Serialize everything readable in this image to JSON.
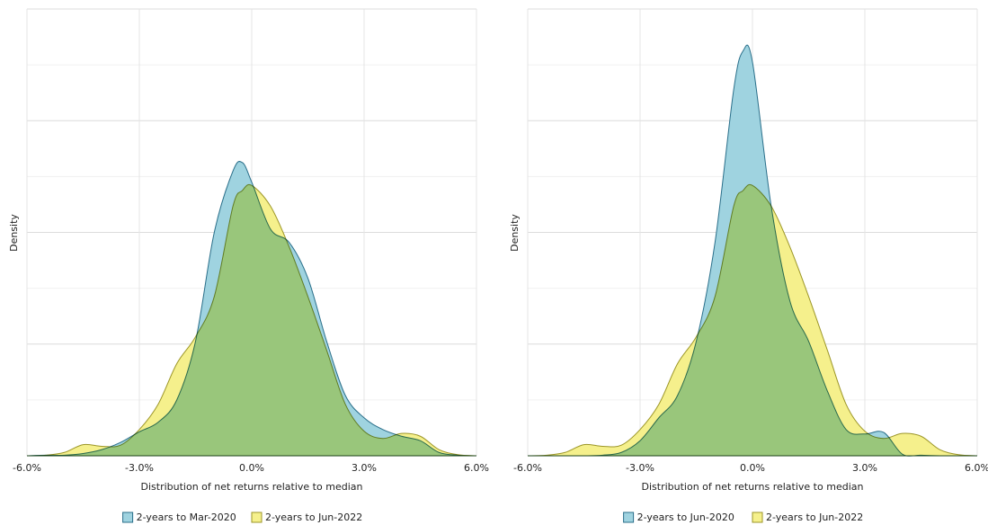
{
  "chart_data": [
    {
      "type": "area",
      "ylabel": "Density",
      "xlabel": "Distribution of net returns relative to median",
      "x": [
        -6,
        -5.5,
        -5,
        -4.5,
        -4,
        -3.5,
        -3,
        -2.5,
        -2,
        -1.5,
        -1,
        -0.5,
        -0.25,
        0,
        0.5,
        1,
        1.5,
        2,
        2.5,
        3,
        3.5,
        4,
        4.5,
        5,
        5.5,
        6
      ],
      "series": [
        {
          "name": "2-years to Mar-2020",
          "color": "#9fd3e0",
          "edge": "#2a6f8a",
          "values": [
            0,
            0.01,
            0.01,
            0.04,
            0.11,
            0.24,
            0.43,
            0.6,
            1.0,
            2.05,
            4.0,
            5.1,
            5.25,
            4.9,
            4.06,
            3.82,
            3.18,
            2.05,
            1.08,
            0.68,
            0.47,
            0.35,
            0.27,
            0.06,
            0.01,
            0
          ]
        },
        {
          "name": "2-years to Jun-2022",
          "color": "#f5f08c",
          "edge": "#9c9628",
          "values": [
            0,
            0.01,
            0.06,
            0.2,
            0.17,
            0.19,
            0.47,
            0.92,
            1.65,
            2.13,
            2.85,
            4.47,
            4.75,
            4.84,
            4.47,
            3.74,
            2.85,
            1.89,
            0.92,
            0.44,
            0.31,
            0.4,
            0.35,
            0.11,
            0.02,
            0
          ]
        }
      ],
      "xlim": [
        -6,
        6
      ],
      "xticks": [
        {
          "value": -6,
          "label": "-6.0%"
        },
        {
          "value": -3,
          "label": "-3.0%"
        },
        {
          "value": 0,
          "label": "0.0%"
        },
        {
          "value": 3,
          "label": "3.0%"
        },
        {
          "value": 6,
          "label": "6.0%"
        }
      ],
      "ylim": [
        0,
        8
      ],
      "yticks": [
        0,
        1,
        2,
        3,
        4,
        5,
        6,
        7,
        8
      ],
      "grid": true,
      "legend": "bottom"
    },
    {
      "type": "area",
      "ylabel": "Density",
      "xlabel": "Distribution of net returns relative to median",
      "x": [
        -6,
        -5.5,
        -5,
        -4.5,
        -4,
        -3.5,
        -3,
        -2.5,
        -2,
        -1.5,
        -1,
        -0.5,
        -0.25,
        0,
        0.5,
        1,
        1.5,
        2,
        2.5,
        3,
        3.5,
        4,
        4.5,
        5,
        5.5,
        6
      ],
      "series": [
        {
          "name": "2-years to Jun-2020",
          "color": "#9fd3e0",
          "edge": "#2a6f8a",
          "values": [
            0,
            0,
            0,
            0,
            0.01,
            0.06,
            0.27,
            0.68,
            1.08,
            2.05,
            3.82,
            6.56,
            7.25,
            7.05,
            4.47,
            2.77,
            2.05,
            1.16,
            0.47,
            0.39,
            0.42,
            0.03,
            0.01,
            0,
            0,
            0
          ]
        },
        {
          "name": "2-years to Jun-2022",
          "color": "#f5f08c",
          "edge": "#9c9628",
          "values": [
            0,
            0.01,
            0.06,
            0.2,
            0.17,
            0.19,
            0.47,
            0.92,
            1.65,
            2.13,
            2.85,
            4.47,
            4.75,
            4.84,
            4.47,
            3.74,
            2.85,
            1.89,
            0.92,
            0.44,
            0.31,
            0.4,
            0.35,
            0.11,
            0.02,
            0
          ]
        }
      ],
      "xlim": [
        -6,
        6
      ],
      "xticks": [
        {
          "value": -6,
          "label": "-6.0%"
        },
        {
          "value": -3,
          "label": "-3.0%"
        },
        {
          "value": 0,
          "label": "0.0%"
        },
        {
          "value": 3,
          "label": "3.0%"
        },
        {
          "value": 6,
          "label": "6.0%"
        }
      ],
      "ylim": [
        0,
        8
      ],
      "yticks": [
        0,
        1,
        2,
        3,
        4,
        5,
        6,
        7,
        8
      ],
      "grid": true,
      "legend": "bottom"
    }
  ]
}
